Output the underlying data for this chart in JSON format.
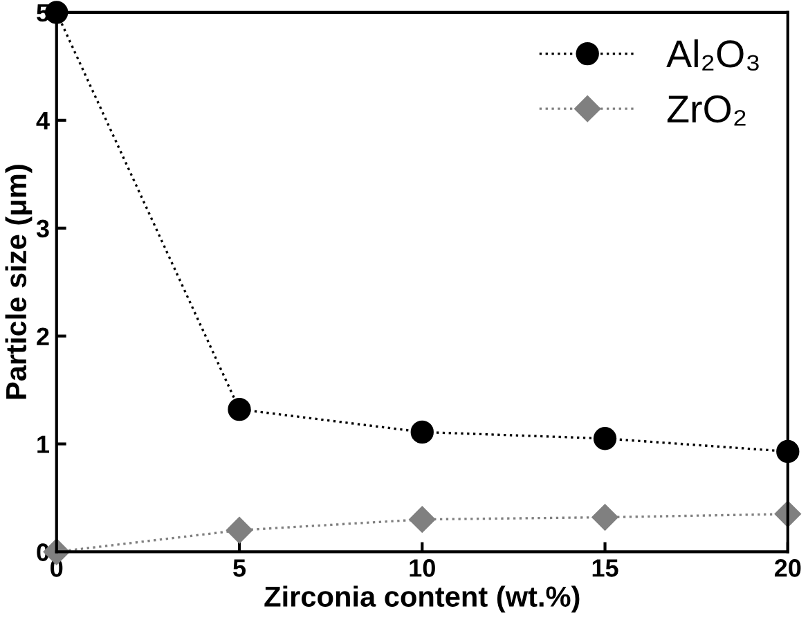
{
  "chart_data": {
    "type": "line",
    "xlabel": "Zirconia content (wt.%)",
    "ylabel": "Particle size (μm)",
    "x": [
      0,
      5,
      10,
      15,
      20
    ],
    "series": [
      {
        "name": "Al₂O₃",
        "color": "#000000",
        "marker": "circle",
        "values": [
          5,
          1.32,
          1.11,
          1.05,
          0.93
        ]
      },
      {
        "name": "ZrO₂",
        "color": "#808080",
        "marker": "diamond",
        "values": [
          0,
          0.2,
          0.3,
          0.32,
          0.35
        ]
      }
    ],
    "line_style": "dotted",
    "xlim": [
      0,
      20
    ],
    "ylim": [
      0,
      5
    ],
    "xticks": [
      0,
      5,
      10,
      15,
      20
    ],
    "yticks": [
      0,
      1,
      2,
      3,
      4,
      5
    ],
    "grid": false,
    "legend": "top right"
  }
}
